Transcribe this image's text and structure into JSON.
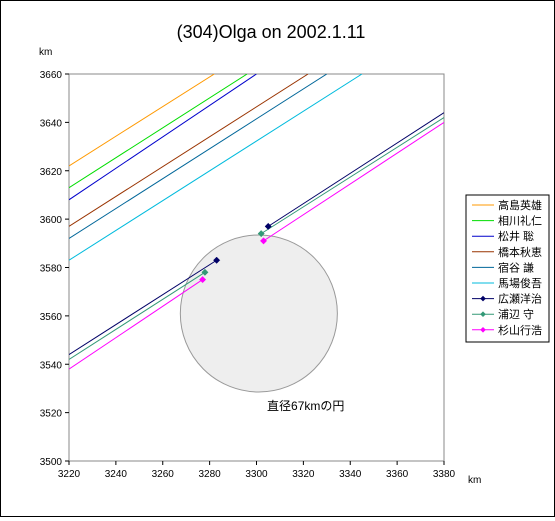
{
  "chart_data": {
    "type": "line",
    "title": "(304)Olga on 2002.1.11",
    "x_unit": "km",
    "y_unit": "km",
    "xlim": [
      3220,
      3380
    ],
    "ylim": [
      3500,
      3660
    ],
    "x_ticks": [
      "3220",
      "3240",
      "3260",
      "3280",
      "3300",
      "3320",
      "3340",
      "3360",
      "3380"
    ],
    "y_ticks": [
      "3500",
      "3520",
      "3540",
      "3560",
      "3580",
      "3600",
      "3620",
      "3640",
      "3660"
    ],
    "grid": false,
    "legend_position": "right",
    "circle": {
      "cx": 3301,
      "cy": 3561,
      "diameter": 67,
      "label": "直径67kmの円",
      "fill": "#eeeeee",
      "stroke": "#999999"
    },
    "series": [
      {
        "name": "高島英雄",
        "color": "#ff9900",
        "marker": "none",
        "segments": [
          [
            [
              3220,
              3622
            ],
            [
              3282,
              3660
            ]
          ]
        ],
        "points": []
      },
      {
        "name": "相川礼仁",
        "color": "#00dd00",
        "marker": "none",
        "segments": [
          [
            [
              3220,
              3613
            ],
            [
              3296,
              3660
            ]
          ]
        ],
        "points": []
      },
      {
        "name": "松井 聡",
        "color": "#0000cc",
        "marker": "none",
        "segments": [
          [
            [
              3220,
              3608
            ],
            [
              3300,
              3660
            ]
          ]
        ],
        "points": []
      },
      {
        "name": "橋本秋恵",
        "color": "#993300",
        "marker": "none",
        "segments": [
          [
            [
              3220,
              3597
            ],
            [
              3322,
              3660
            ]
          ]
        ],
        "points": []
      },
      {
        "name": "宿谷 謙",
        "color": "#006699",
        "marker": "none",
        "segments": [
          [
            [
              3220,
              3592
            ],
            [
              3330,
              3660
            ]
          ]
        ],
        "points": []
      },
      {
        "name": "馬場俊吾",
        "color": "#00bbdd",
        "marker": "none",
        "segments": [
          [
            [
              3220,
              3583
            ],
            [
              3345,
              3660
            ]
          ]
        ],
        "points": []
      },
      {
        "name": "広瀬洋治",
        "color": "#000066",
        "marker": "diamond",
        "segments": [
          [
            [
              3220,
              3544
            ],
            [
              3283,
              3583
            ]
          ],
          [
            [
              3305,
              3597
            ],
            [
              3380,
              3644
            ]
          ]
        ],
        "points": [
          [
            3283,
            3583
          ],
          [
            3305,
            3597
          ]
        ]
      },
      {
        "name": "浦辺 守",
        "color": "#339977",
        "marker": "diamond",
        "segments": [
          [
            [
              3220,
              3542
            ],
            [
              3278,
              3578
            ]
          ],
          [
            [
              3302,
              3594
            ],
            [
              3380,
              3642
            ]
          ]
        ],
        "points": [
          [
            3278,
            3578
          ],
          [
            3302,
            3594
          ]
        ]
      },
      {
        "name": "杉山行浩",
        "color": "#ff00ff",
        "marker": "diamond",
        "segments": [
          [
            [
              3220,
              3538
            ],
            [
              3277,
              3575
            ]
          ],
          [
            [
              3303,
              3591
            ],
            [
              3380,
              3640
            ]
          ]
        ],
        "points": [
          [
            3277,
            3575
          ],
          [
            3303,
            3591
          ]
        ]
      }
    ]
  }
}
